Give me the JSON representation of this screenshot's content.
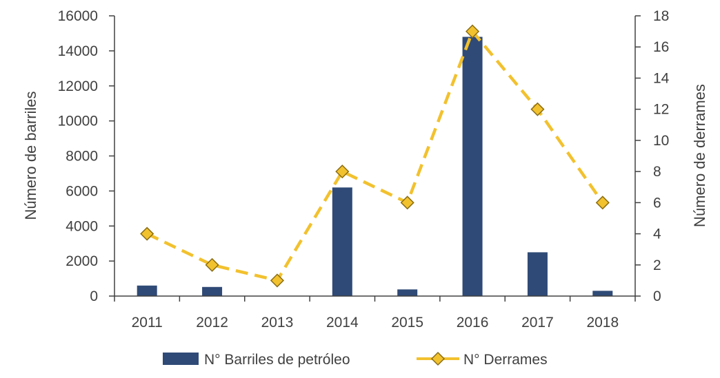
{
  "chart_data": {
    "type": "bar+line",
    "categories": [
      "2011",
      "2012",
      "2013",
      "2014",
      "2015",
      "2016",
      "2017",
      "2018"
    ],
    "series": [
      {
        "name": "N° Barriles de petróleo",
        "type": "bar",
        "axis": "left",
        "color": "#2f4a76",
        "values": [
          600,
          520,
          0,
          6200,
          380,
          14800,
          2500,
          300
        ]
      },
      {
        "name": "N° Derrames",
        "type": "line",
        "axis": "right",
        "color": "#f2c12e",
        "marker": "diamond",
        "line_style": "dashed",
        "values": [
          4,
          2,
          1,
          8,
          6,
          17,
          12,
          6
        ]
      }
    ],
    "ylabel_left": "Número de barriles",
    "ylabel_right": "Número de derrames",
    "ylim_left": [
      0,
      16000
    ],
    "yticks_left": [
      "0",
      "2000",
      "4000",
      "6000",
      "8000",
      "10000",
      "12000",
      "14000",
      "16000"
    ],
    "ylim_right": [
      0,
      18
    ],
    "yticks_right": [
      "0",
      "2",
      "4",
      "6",
      "8",
      "10",
      "12",
      "14",
      "16",
      "18"
    ],
    "grid": false,
    "legend_position": "bottom"
  }
}
